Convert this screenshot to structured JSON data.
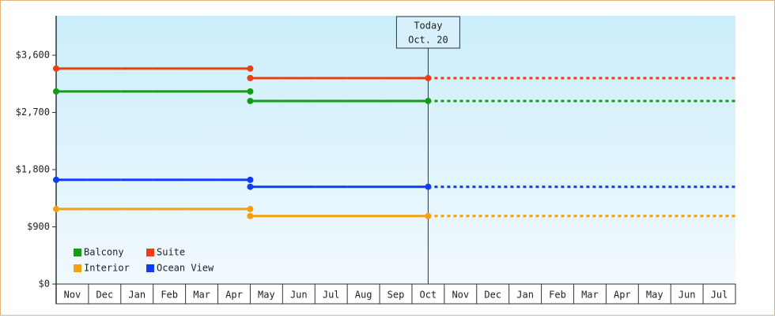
{
  "chart_data": {
    "type": "step-line",
    "categories": [
      "Nov",
      "Dec",
      "Jan",
      "Feb",
      "Mar",
      "Apr",
      "May",
      "Jun",
      "Jul",
      "Aug",
      "Sep",
      "Oct",
      "Nov",
      "Dec",
      "Jan",
      "Feb",
      "Mar",
      "Apr",
      "May",
      "Jun",
      "Jul"
    ],
    "series": [
      {
        "name": "Balcony",
        "color": "#129c12",
        "values": [
          3030,
          3030,
          3030,
          3030,
          3030,
          3030,
          2880,
          2880,
          2880,
          2880,
          2880,
          2880,
          null,
          null,
          null,
          null,
          null,
          null,
          null,
          null,
          null
        ]
      },
      {
        "name": "Suite",
        "color": "#f03c0f",
        "values": [
          3390,
          3390,
          3390,
          3390,
          3390,
          3390,
          3240,
          3240,
          3240,
          3240,
          3240,
          3240,
          null,
          null,
          null,
          null,
          null,
          null,
          null,
          null,
          null
        ]
      },
      {
        "name": "Interior",
        "color": "#f5a00f",
        "values": [
          1180,
          1180,
          1180,
          1180,
          1180,
          1180,
          1070,
          1070,
          1070,
          1070,
          1070,
          1070,
          null,
          null,
          null,
          null,
          null,
          null,
          null,
          null,
          null
        ]
      },
      {
        "name": "Ocean View",
        "color": "#0f3cf5",
        "values": [
          1640,
          1640,
          1640,
          1640,
          1640,
          1640,
          1530,
          1530,
          1530,
          1530,
          1530,
          1530,
          null,
          null,
          null,
          null,
          null,
          null,
          null,
          null,
          null
        ]
      }
    ],
    "today_label": [
      "Today",
      "Oct. 20"
    ],
    "ylim": [
      0,
      4220
    ],
    "yticks": [
      {
        "value": 0,
        "label": "$0"
      },
      {
        "value": 900,
        "label": "$900"
      },
      {
        "value": 1800,
        "label": "$1,800"
      },
      {
        "value": 2700,
        "label": "$2,700"
      },
      {
        "value": 3600,
        "label": "$3,600"
      }
    ],
    "legend": "lower left",
    "grid": false
  }
}
